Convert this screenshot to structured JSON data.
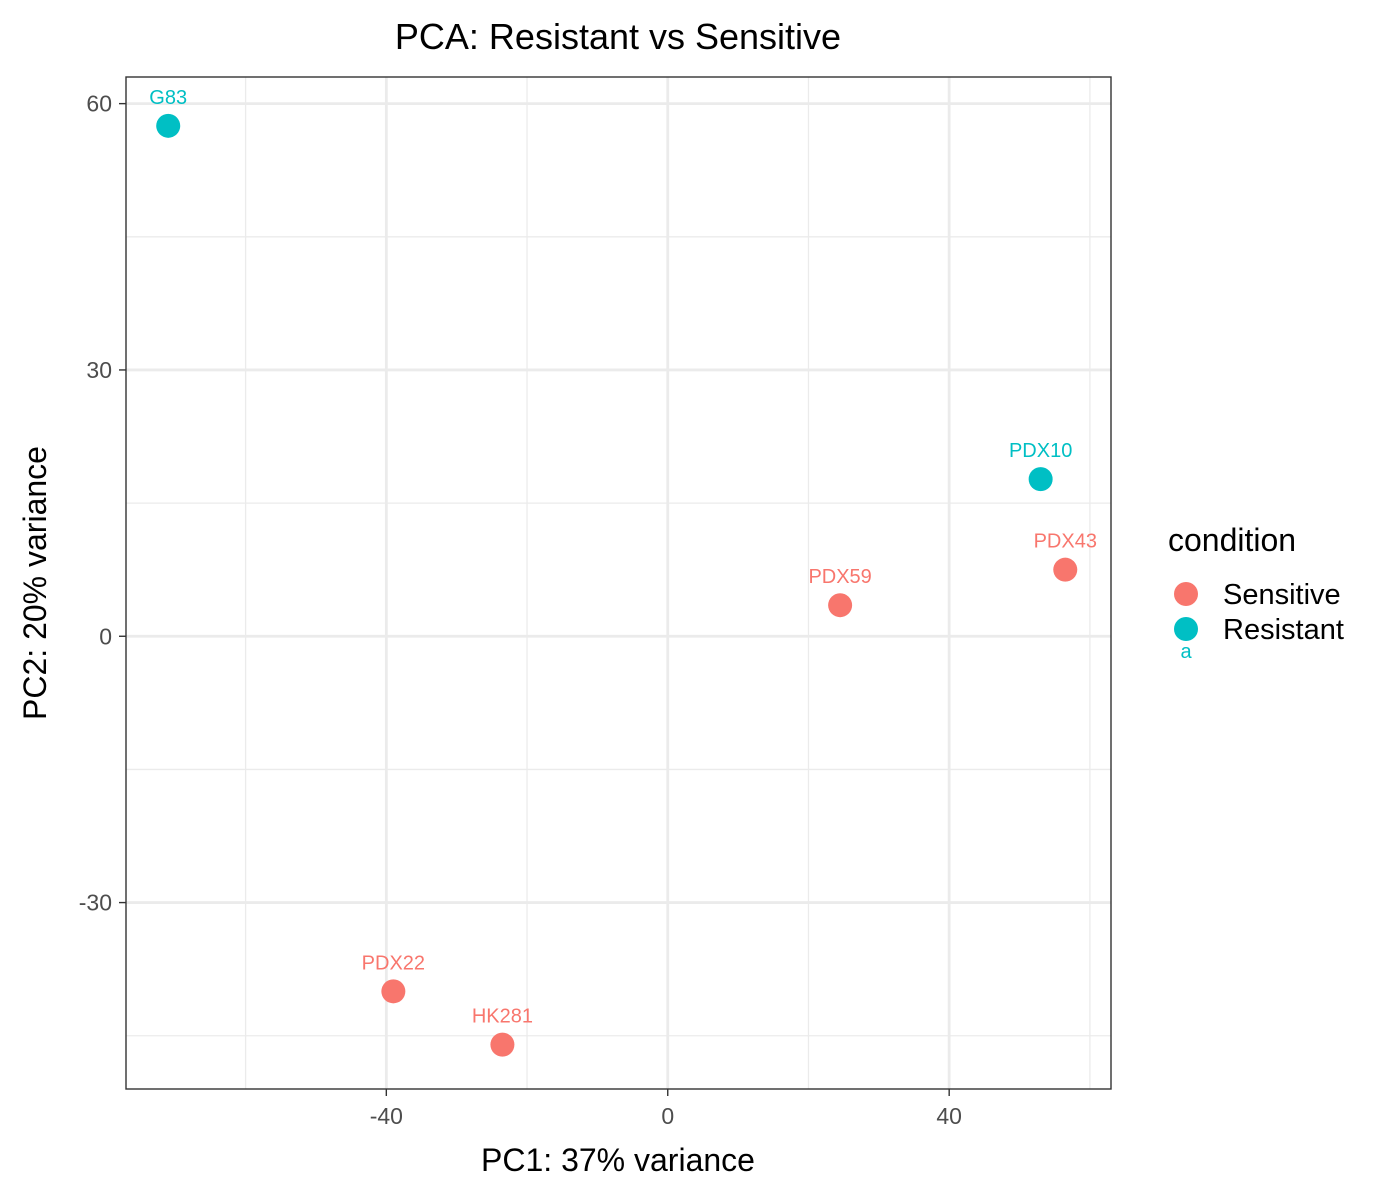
{
  "chart_data": {
    "type": "scatter",
    "title": "PCA: Resistant vs Sensitive",
    "xlabel": "PC1: 37% variance",
    "ylabel": "PC2: 20% variance",
    "xlim": [
      -77,
      63
    ],
    "ylim": [
      -51,
      63
    ],
    "x_ticks": [
      "-40",
      "0",
      "40"
    ],
    "y_ticks": [
      "-30",
      "0",
      "30",
      "60"
    ],
    "grid": true,
    "legend": {
      "title": "condition",
      "placement": "right",
      "entries": [
        {
          "label": "Sensitive",
          "color": "#F8766D",
          "glyph": "a"
        },
        {
          "label": "Resistant",
          "color": "#00BFC4",
          "glyph": "a"
        }
      ]
    },
    "series": [
      {
        "name": "Sensitive",
        "color": "#F8766D",
        "points": [
          {
            "label": "PDX22",
            "x": -39,
            "y": -40
          },
          {
            "label": "HK281",
            "x": -23.5,
            "y": -46
          },
          {
            "label": "PDX59",
            "x": 24.5,
            "y": 3.5
          },
          {
            "label": "PDX43",
            "x": 56.5,
            "y": 7.5
          }
        ]
      },
      {
        "name": "Resistant",
        "color": "#00BFC4",
        "points": [
          {
            "label": "G83",
            "x": -71,
            "y": 57.5
          },
          {
            "label": "PDX10",
            "x": 53,
            "y": 17.7
          }
        ]
      }
    ]
  }
}
